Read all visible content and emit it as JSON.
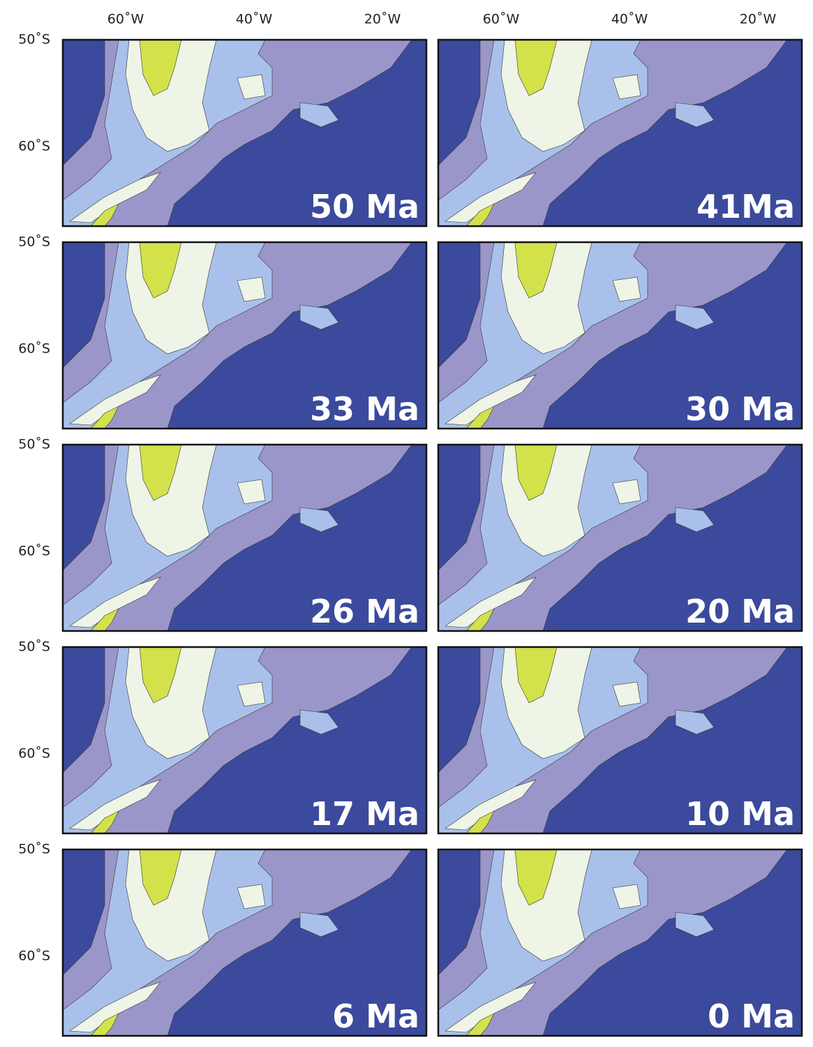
{
  "longitude_labels": [
    "60˚W",
    "40˚W",
    "20˚W"
  ],
  "latitude_labels": [
    "50˚S",
    "60˚S"
  ],
  "panels": [
    {
      "label": "50 Ma"
    },
    {
      "label": "41Ma"
    },
    {
      "label": "33 Ma"
    },
    {
      "label": "30 Ma"
    },
    {
      "label": "26 Ma"
    },
    {
      "label": "20 Ma"
    },
    {
      "label": "17 Ma"
    },
    {
      "label": "10 Ma"
    },
    {
      "label": "6 Ma"
    },
    {
      "label": "0 Ma"
    }
  ]
}
